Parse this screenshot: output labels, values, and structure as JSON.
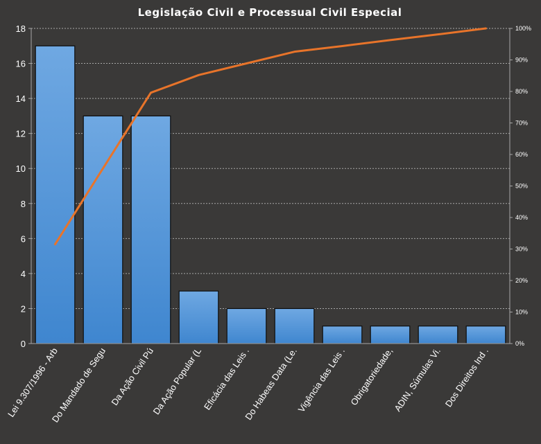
{
  "chart_data": {
    "type": "bar",
    "title": "Legislação Civil e Processual Civil Especial",
    "categories": [
      "Lei 9.307/1996 - Arb",
      "Do Mandado de Segu",
      "Da Ação Civil Pú",
      "Da Ação Popular (L",
      "Eficácia das Leis .",
      "Do Habeas Data (Le.",
      "Vigência das Leis .",
      "Obrigatoriedade,",
      "ADIN, Súmulas Vi.",
      "Dos Direitos Ind ."
    ],
    "values": [
      17,
      13,
      13,
      3,
      2,
      2,
      1,
      1,
      1,
      1
    ],
    "cumulative_percent": [
      31.5,
      55.6,
      79.6,
      85.2,
      88.9,
      92.6,
      94.4,
      96.3,
      98.1,
      100
    ],
    "ylim": [
      0,
      18
    ],
    "yticks": [
      "0",
      "2",
      "4",
      "6",
      "8",
      "10",
      "12",
      "14",
      "16",
      "18"
    ],
    "y2lim": [
      0,
      100
    ],
    "y2ticks": [
      "0%",
      "10%",
      "20%",
      "30%",
      "40%",
      "50%",
      "60%",
      "70%",
      "80%",
      "90%",
      "100%"
    ],
    "grid": true,
    "colors": {
      "background": "#3a3938",
      "bar_top": "#6fa8e2",
      "bar_bottom": "#3f86cf",
      "line": "#e8742a",
      "text": "#ffffff"
    }
  }
}
